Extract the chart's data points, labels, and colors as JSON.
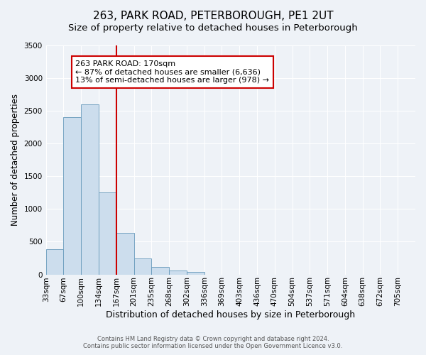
{
  "title": "263, PARK ROAD, PETERBOROUGH, PE1 2UT",
  "subtitle": "Size of property relative to detached houses in Peterborough",
  "xlabel": "Distribution of detached houses by size in Peterborough",
  "ylabel": "Number of detached properties",
  "bin_labels": [
    "33sqm",
    "67sqm",
    "100sqm",
    "134sqm",
    "167sqm",
    "201sqm",
    "235sqm",
    "268sqm",
    "302sqm",
    "336sqm",
    "369sqm",
    "403sqm",
    "436sqm",
    "470sqm",
    "504sqm",
    "537sqm",
    "571sqm",
    "604sqm",
    "638sqm",
    "672sqm",
    "705sqm"
  ],
  "bin_edges": [
    0,
    1,
    2,
    3,
    4,
    5,
    6,
    7,
    8,
    9,
    10,
    11,
    12,
    13,
    14,
    15,
    16,
    17,
    18,
    19,
    20
  ],
  "bar_heights": [
    390,
    2400,
    2600,
    1250,
    630,
    250,
    110,
    60,
    40,
    0,
    0,
    0,
    0,
    0,
    0,
    0,
    0,
    0,
    0,
    0
  ],
  "bar_color": "#ccdded",
  "bar_edgecolor": "#6699bb",
  "ylim": [
    0,
    3500
  ],
  "yticks": [
    0,
    500,
    1000,
    1500,
    2000,
    2500,
    3000,
    3500
  ],
  "red_line_x": 4,
  "annotation_text": "263 PARK ROAD: 170sqm\n← 87% of detached houses are smaller (6,636)\n13% of semi-detached houses are larger (978) →",
  "annotation_box_color": "#ffffff",
  "annotation_border_color": "#cc0000",
  "footer_line1": "Contains HM Land Registry data © Crown copyright and database right 2024.",
  "footer_line2": "Contains public sector information licensed under the Open Government Licence v3.0.",
  "background_color": "#eef2f7",
  "grid_color": "#ffffff",
  "title_fontsize": 11,
  "subtitle_fontsize": 9.5,
  "xlabel_fontsize": 9,
  "ylabel_fontsize": 8.5,
  "tick_fontsize": 7.5,
  "footer_fontsize": 6,
  "annotation_fontsize": 8
}
